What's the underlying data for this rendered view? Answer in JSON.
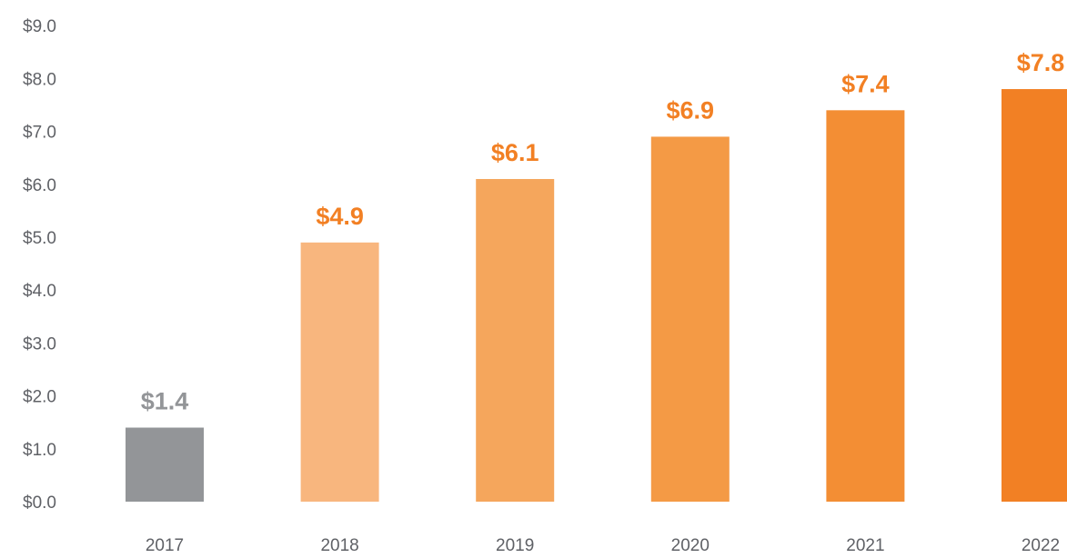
{
  "chart_data": {
    "type": "bar",
    "categories": [
      "2017",
      "2018",
      "2019",
      "2020",
      "2021",
      "2022"
    ],
    "values": [
      1.4,
      4.9,
      6.1,
      6.9,
      7.4,
      7.8
    ],
    "value_labels": [
      "$1.4",
      "$4.9",
      "$6.1",
      "$6.9",
      "$7.4",
      "$7.8"
    ],
    "y_ticks": [
      0,
      1,
      2,
      3,
      4,
      5,
      6,
      7,
      8,
      9
    ],
    "y_tick_labels": [
      "$0.0",
      "$1.0",
      "$2.0",
      "$3.0",
      "$4.0",
      "$5.0",
      "$6.0",
      "$7.0",
      "$8.0",
      "$9.0"
    ],
    "ylim": [
      0,
      9
    ],
    "title": "",
    "xlabel": "",
    "ylabel": "",
    "grid": false,
    "legend": "none",
    "colors": {
      "bars": [
        "#939598",
        "#F8B67E",
        "#F5A65C",
        "#F49A45",
        "#F38E34",
        "#F28024"
      ],
      "value_labels": [
        "#939598",
        "#F28024",
        "#F28024",
        "#F28024",
        "#F28024",
        "#F28024"
      ]
    }
  }
}
